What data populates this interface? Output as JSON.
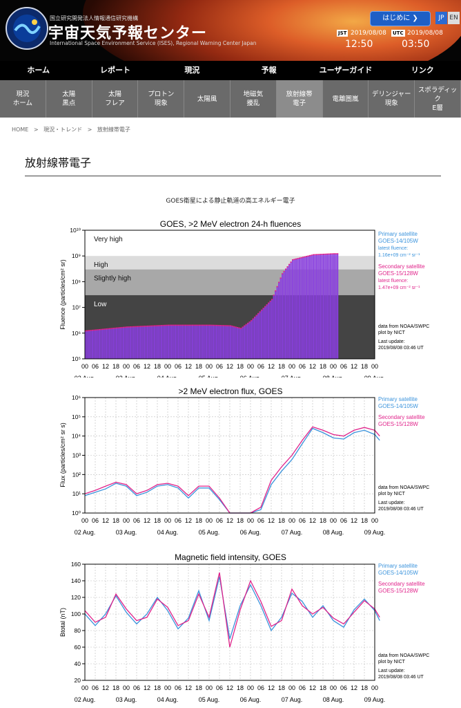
{
  "header": {
    "org": "国立研究開発法人情報通信研究機構",
    "title": "宇宙天気予報センター",
    "subtitle": "International Space Environment Service (ISES), Regional Warning Center Japan",
    "start_button": "はじめに ❯",
    "lang_jp": "JP",
    "lang_en": "EN",
    "jst_label": "JST",
    "jst_date": "2019/08/08",
    "jst_time": "12:50",
    "utc_label": "UTC",
    "utc_date": "2019/08/08",
    "utc_time": "03:50",
    "logo_text": "International Space Environment Service · Regional Warning Center Japan"
  },
  "mainnav": [
    "ホーム",
    "レポート",
    "現況",
    "予報",
    "ユーザーガイド",
    "リンク"
  ],
  "subnav": [
    "現況\nホーム",
    "太陽\n黒点",
    "太陽\nフレア",
    "プロトン\n現象",
    "太陽風",
    "地磁気\n擾乱",
    "放射線帯\n電子",
    "電離圏嵐",
    "デリンジャー\n現象",
    "スポラディック\nE層"
  ],
  "breadcrumb": [
    "HOME",
    ">",
    "現況・トレンド",
    ">",
    "放射線帯電子"
  ],
  "page_title": "放射線帯電子",
  "caption": "GOES衛星による静止軌道の高エネルギー電子",
  "colors": {
    "primary": "#3a93dc",
    "secondary": "#e0228a",
    "fluence_bar": "#8a3fe0"
  },
  "side": {
    "primary": "Primary satellite",
    "primary_sat": "GOES-14/105W",
    "secondary": "Secondary satellite",
    "secondary_sat": "GOES-15/128W",
    "latest": "latest fluence:",
    "primary_val": "1.16e+09 cm⁻² sr⁻¹",
    "secondary_val": "1.47e+09 cm⁻² sr⁻¹",
    "source1": "data from NOAA/SWPC",
    "source2": "plot by NICT",
    "update1": "Last update:",
    "update2": "2019/08/08 03:46 UT"
  },
  "hour_ticks": [
    "00",
    "06",
    "12",
    "18",
    "00",
    "06",
    "12",
    "18",
    "00",
    "06",
    "12",
    "18",
    "00",
    "06",
    "12",
    "18",
    "00",
    "06",
    "12",
    "18",
    "00",
    "06",
    "12",
    "18",
    "00",
    "06",
    "12",
    "18",
    "00"
  ],
  "day_labels": [
    "02 Aug.",
    "03 Aug.",
    "04 Aug.",
    "05 Aug.",
    "06 Aug.",
    "07 Aug.",
    "08 Aug.",
    "09 Aug."
  ],
  "chart_data": [
    {
      "type": "bar",
      "title": "GOES, >2 MeV electron 24-h fluences",
      "ylabel": "Fluence (particles/cm² sr)",
      "yscale": "log",
      "ylim": [
        100000,
        10000000000
      ],
      "yticks": [
        "10⁵",
        "10⁶",
        "10⁷",
        "10⁸",
        "10⁹",
        "10¹⁰"
      ],
      "levels": [
        {
          "name": "Very high",
          "from": 1000000000,
          "to": 10000000000
        },
        {
          "name": "High",
          "from": 300000000,
          "to": 1000000000
        },
        {
          "name": "Slightly high",
          "from": 30000000,
          "to": 300000000
        },
        {
          "name": "Low",
          "from": 100000,
          "to": 30000000
        }
      ],
      "x_range_days": [
        "02 Aug. 00",
        "09 Aug. 00"
      ],
      "fluence_profile": [
        {
          "t": "02 Aug. 00",
          "v": 1200000
        },
        {
          "t": "03 Aug. 00",
          "v": 1700000
        },
        {
          "t": "04 Aug. 00",
          "v": 2000000
        },
        {
          "t": "05 Aug. 00",
          "v": 2000000
        },
        {
          "t": "05 Aug. 12",
          "v": 1900000
        },
        {
          "t": "05 Aug. 18",
          "v": 1500000
        },
        {
          "t": "06 Aug. 00",
          "v": 3000000
        },
        {
          "t": "06 Aug. 12",
          "v": 20000000
        },
        {
          "t": "06 Aug. 18",
          "v": 200000000
        },
        {
          "t": "07 Aug. 00",
          "v": 700000000
        },
        {
          "t": "07 Aug. 12",
          "v": 1100000000
        },
        {
          "t": "08 Aug. 00",
          "v": 1200000000
        },
        {
          "t": "08 Aug. 03",
          "v": 1200000000
        }
      ]
    },
    {
      "type": "line",
      "title": ">2 MeV electron flux, GOES",
      "ylabel": "Flux (particles/cm² sr s)",
      "yscale": "log",
      "ylim": [
        1,
        1000000
      ],
      "yticks": [
        "10⁰",
        "10¹",
        "10²",
        "10³",
        "10⁴",
        "10⁵",
        "10⁶"
      ],
      "series": [
        {
          "name": "GOES-14/105W",
          "points": [
            [
              0,
              8
            ],
            [
              0.25,
              12
            ],
            [
              0.5,
              18
            ],
            [
              0.75,
              35
            ],
            [
              1.0,
              25
            ],
            [
              1.25,
              8
            ],
            [
              1.5,
              12
            ],
            [
              1.75,
              25
            ],
            [
              2.0,
              30
            ],
            [
              2.25,
              20
            ],
            [
              2.5,
              6
            ],
            [
              2.75,
              20
            ],
            [
              3.0,
              20
            ],
            [
              3.25,
              5
            ],
            [
              3.5,
              1
            ],
            [
              3.75,
              1
            ],
            [
              4.0,
              1
            ],
            [
              4.25,
              1.5
            ],
            [
              4.5,
              30
            ],
            [
              4.75,
              150
            ],
            [
              5.0,
              600
            ],
            [
              5.25,
              4000
            ],
            [
              5.5,
              25000
            ],
            [
              5.75,
              15000
            ],
            [
              6.0,
              8000
            ],
            [
              6.25,
              7000
            ],
            [
              6.5,
              15000
            ],
            [
              6.75,
              20000
            ],
            [
              7.0,
              12000
            ],
            [
              7.12,
              6000
            ]
          ]
        },
        {
          "name": "GOES-15/128W",
          "points": [
            [
              0,
              10
            ],
            [
              0.25,
              15
            ],
            [
              0.5,
              25
            ],
            [
              0.75,
              40
            ],
            [
              1.0,
              30
            ],
            [
              1.25,
              10
            ],
            [
              1.5,
              15
            ],
            [
              1.75,
              30
            ],
            [
              2.0,
              35
            ],
            [
              2.25,
              25
            ],
            [
              2.5,
              8
            ],
            [
              2.75,
              25
            ],
            [
              3.0,
              25
            ],
            [
              3.25,
              6
            ],
            [
              3.5,
              1
            ],
            [
              3.75,
              1
            ],
            [
              4.0,
              1
            ],
            [
              4.25,
              2
            ],
            [
              4.5,
              50
            ],
            [
              4.75,
              250
            ],
            [
              5.0,
              1000
            ],
            [
              5.25,
              6000
            ],
            [
              5.5,
              30000
            ],
            [
              5.75,
              20000
            ],
            [
              6.0,
              12000
            ],
            [
              6.25,
              10000
            ],
            [
              6.5,
              20000
            ],
            [
              6.75,
              28000
            ],
            [
              7.0,
              20000
            ],
            [
              7.12,
              10000
            ]
          ]
        }
      ]
    },
    {
      "type": "line",
      "title": "Magnetic field intensity, GOES",
      "ylabel": "Btotal (nT)",
      "ylim": [
        20,
        160
      ],
      "yticks": [
        "20",
        "40",
        "60",
        "80",
        "100",
        "120",
        "140",
        "160"
      ],
      "series": [
        {
          "name": "GOES-14/105W",
          "points": [
            [
              0,
              100
            ],
            [
              0.25,
              86
            ],
            [
              0.5,
              100
            ],
            [
              0.75,
              122
            ],
            [
              1.0,
              102
            ],
            [
              1.25,
              88
            ],
            [
              1.5,
              100
            ],
            [
              1.75,
              120
            ],
            [
              2.0,
              104
            ],
            [
              2.25,
              82
            ],
            [
              2.5,
              95
            ],
            [
              2.75,
              128
            ],
            [
              3.0,
              92
            ],
            [
              3.25,
              145
            ],
            [
              3.5,
              70
            ],
            [
              3.75,
              110
            ],
            [
              4.0,
              135
            ],
            [
              4.25,
              110
            ],
            [
              4.5,
              80
            ],
            [
              4.75,
              96
            ],
            [
              5.0,
              125
            ],
            [
              5.25,
              115
            ],
            [
              5.5,
              96
            ],
            [
              5.75,
              110
            ],
            [
              6.0,
              92
            ],
            [
              6.25,
              84
            ],
            [
              6.5,
              105
            ],
            [
              6.75,
              118
            ],
            [
              7.0,
              104
            ],
            [
              7.12,
              92
            ]
          ]
        },
        {
          "name": "GOES-15/128W",
          "points": [
            [
              0,
              104
            ],
            [
              0.25,
              90
            ],
            [
              0.5,
              96
            ],
            [
              0.75,
              124
            ],
            [
              1.0,
              106
            ],
            [
              1.25,
              92
            ],
            [
              1.5,
              96
            ],
            [
              1.75,
              118
            ],
            [
              2.0,
              108
            ],
            [
              2.25,
              86
            ],
            [
              2.5,
              92
            ],
            [
              2.75,
              124
            ],
            [
              3.0,
              96
            ],
            [
              3.25,
              150
            ],
            [
              3.5,
              60
            ],
            [
              3.75,
              105
            ],
            [
              4.0,
              140
            ],
            [
              4.25,
              115
            ],
            [
              4.5,
              85
            ],
            [
              4.75,
              92
            ],
            [
              5.0,
              130
            ],
            [
              5.25,
              110
            ],
            [
              5.5,
              100
            ],
            [
              5.75,
              108
            ],
            [
              6.0,
              95
            ],
            [
              6.25,
              88
            ],
            [
              6.5,
              102
            ],
            [
              6.75,
              116
            ],
            [
              7.0,
              106
            ],
            [
              7.12,
              96
            ]
          ]
        }
      ]
    }
  ]
}
